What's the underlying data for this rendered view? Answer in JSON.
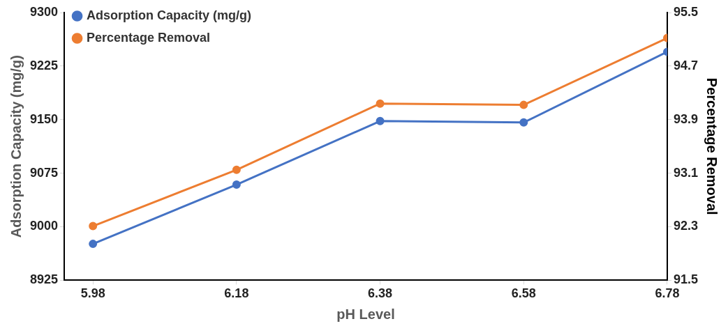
{
  "chart_data": {
    "type": "line",
    "xlabel": "pH Level",
    "ylabel": "Adsorption Capacity (mg/g)",
    "y2label": "Percentage Removal",
    "x": [
      5.98,
      6.18,
      6.38,
      6.58,
      6.78
    ],
    "xlim": [
      5.94,
      6.78
    ],
    "xticks": [
      5.98,
      6.18,
      6.38,
      6.58,
      6.78
    ],
    "ylim": [
      8925,
      9300
    ],
    "yticks": [
      8925,
      9000,
      9075,
      9150,
      9225,
      9300
    ],
    "y2lim": [
      91.5,
      95.5
    ],
    "y2ticks": [
      91.5,
      92.3,
      93.1,
      93.9,
      94.7,
      95.5
    ],
    "series": [
      {
        "name": "Adsorption Capacity (mg/g)",
        "color": "#4472c4",
        "values": [
          8976,
          9059,
          9148,
          9146,
          9245
        ]
      },
      {
        "name": "Percentage Removal",
        "color": "#ed7d31",
        "axis": "y2",
        "values": [
          92.31,
          93.15,
          94.14,
          94.12,
          95.12
        ]
      }
    ],
    "grid": false,
    "legend": "top left",
    "marker": "circle",
    "line_style": "solid"
  }
}
